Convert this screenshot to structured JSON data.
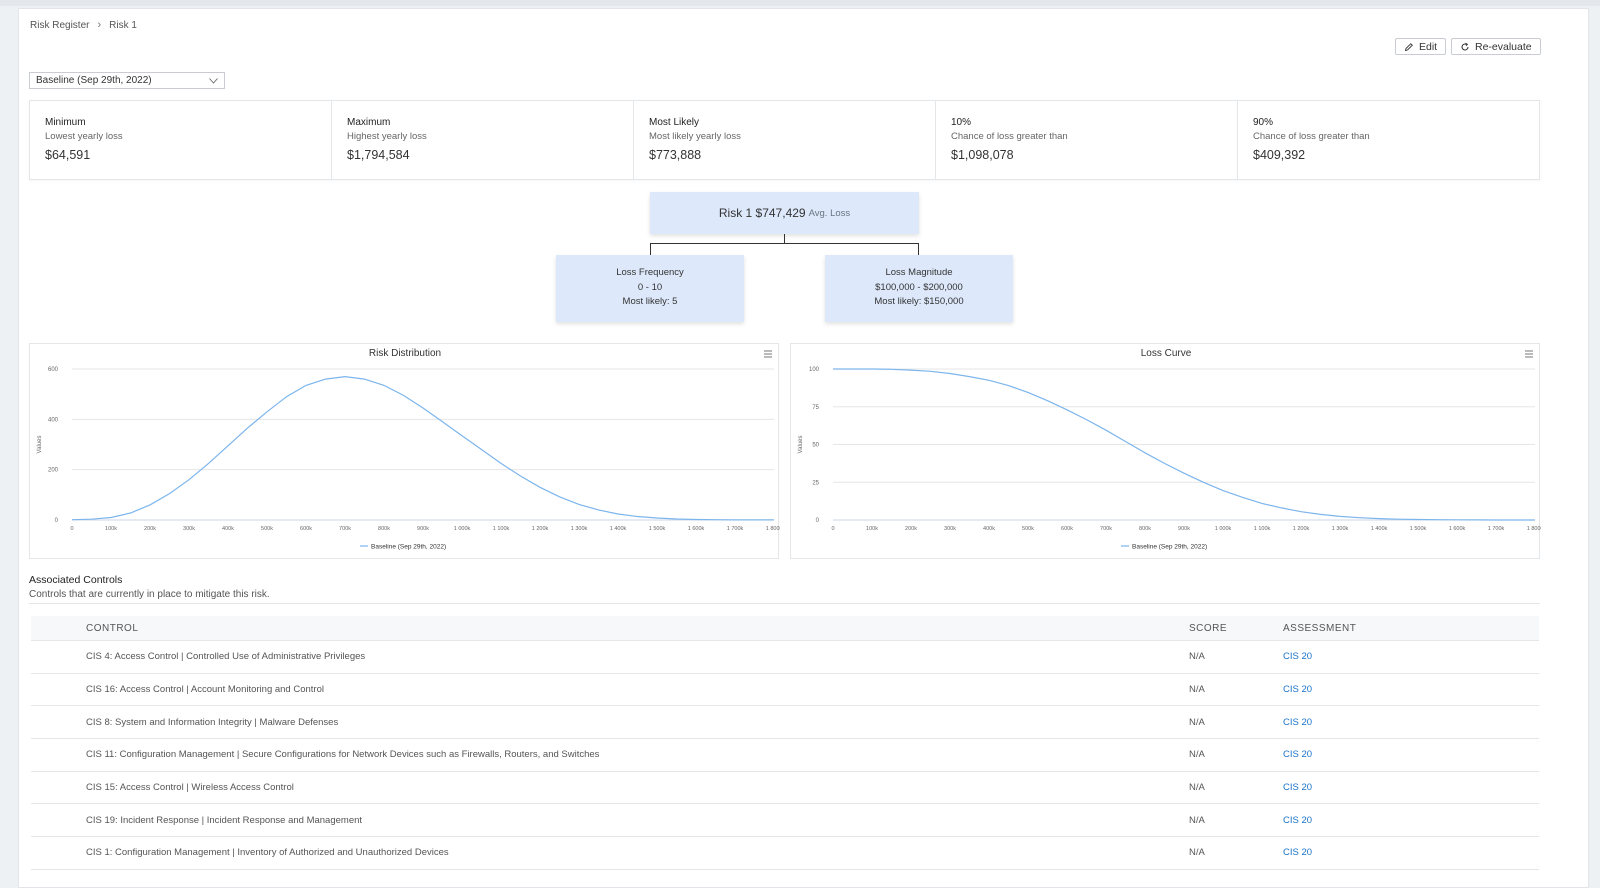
{
  "breadcrumb": {
    "parent": "Risk Register",
    "current": "Risk 1"
  },
  "actions": {
    "edit": "Edit",
    "reevaluate": "Re-evaluate"
  },
  "baseline_select": {
    "value": "Baseline (Sep 29th, 2022)"
  },
  "stats": [
    {
      "title": "Minimum",
      "subtitle": "Lowest yearly loss",
      "value": "$64,591"
    },
    {
      "title": "Maximum",
      "subtitle": "Highest yearly loss",
      "value": "$1,794,584"
    },
    {
      "title": "Most Likely",
      "subtitle": "Most likely yearly loss",
      "value": "$773,888"
    },
    {
      "title": "10%",
      "subtitle": "Chance of loss greater than",
      "value": "$1,098,078"
    },
    {
      "title": "90%",
      "subtitle": "Chance of loss greater than",
      "value": "$409,392"
    }
  ],
  "tree": {
    "root": {
      "label": "Risk 1 $747,429",
      "suffix": "Avg. Loss"
    },
    "frequency": {
      "title": "Loss Frequency",
      "range": "0 - 10",
      "likely": "Most likely: 5"
    },
    "magnitude": {
      "title": "Loss Magnitude",
      "range": "$100,000 - $200,000",
      "likely": "Most likely: $150,000"
    }
  },
  "chart_data": [
    {
      "type": "line",
      "title": "Risk Distribution",
      "ylabel": "Values",
      "ylim": [
        0,
        600
      ],
      "yticks": [
        "0",
        "200",
        "400",
        "600"
      ],
      "xticks": [
        "0",
        "100k",
        "200k",
        "300k",
        "400k",
        "500k",
        "600k",
        "700k",
        "800k",
        "900k",
        "1 000k",
        "1 100k",
        "1 200k",
        "1 300k",
        "1 400k",
        "1 500k",
        "1 600k",
        "1 700k",
        "1 800k"
      ],
      "series": [
        {
          "name": "Baseline (Sep 29th, 2022)",
          "x": [
            0,
            50,
            100,
            150,
            200,
            250,
            300,
            350,
            400,
            450,
            500,
            550,
            600,
            650,
            700,
            750,
            800,
            850,
            900,
            950,
            1000,
            1050,
            1100,
            1150,
            1200,
            1250,
            1300,
            1350,
            1400,
            1450,
            1500,
            1550,
            1600,
            1650,
            1700,
            1750,
            1800
          ],
          "values": [
            1,
            3,
            10,
            28,
            60,
            105,
            160,
            225,
            295,
            365,
            430,
            490,
            535,
            560,
            570,
            560,
            535,
            495,
            445,
            390,
            335,
            280,
            225,
            175,
            130,
            92,
            62,
            40,
            24,
            14,
            8,
            4,
            2,
            1,
            0.5,
            0.3,
            0.2
          ]
        }
      ],
      "color": "#7cb5ec"
    },
    {
      "type": "line",
      "title": "Loss Curve",
      "ylabel": "Values",
      "ylim": [
        0,
        100
      ],
      "yticks": [
        "0",
        "25",
        "50",
        "75",
        "100"
      ],
      "xticks": [
        "0",
        "100k",
        "200k",
        "300k",
        "400k",
        "500k",
        "600k",
        "700k",
        "800k",
        "900k",
        "1 000k",
        "1 100k",
        "1 200k",
        "1 300k",
        "1 400k",
        "1 500k",
        "1 600k",
        "1 700k",
        "1 800k"
      ],
      "series": [
        {
          "name": "Baseline (Sep 29th, 2022)",
          "x": [
            0,
            50,
            100,
            150,
            200,
            250,
            300,
            350,
            400,
            450,
            500,
            550,
            600,
            650,
            700,
            750,
            800,
            850,
            900,
            950,
            1000,
            1050,
            1100,
            1150,
            1200,
            1250,
            1300,
            1350,
            1400,
            1450,
            1500,
            1550,
            1600,
            1650,
            1700,
            1750,
            1800
          ],
          "values": [
            100,
            100,
            100,
            99.8,
            99.3,
            98.5,
            97,
            95,
            92.5,
            89,
            84.5,
            79,
            73,
            66.5,
            59.5,
            52,
            44.5,
            37.5,
            31,
            25,
            19.5,
            15,
            11,
            8,
            5.5,
            3.7,
            2.4,
            1.5,
            0.9,
            0.5,
            0.3,
            0.2,
            0.1,
            0.05,
            0.02,
            0.01,
            0
          ]
        }
      ],
      "color": "#7cb5ec"
    }
  ],
  "controls_section": {
    "title": "Associated Controls",
    "subtitle": "Controls that are currently in place to mitigate this risk."
  },
  "table": {
    "headers": {
      "control": "CONTROL",
      "score": "SCORE",
      "assessment": "ASSESSMENT"
    },
    "rows": [
      {
        "control": "CIS 4: Access Control | Controlled Use of Administrative Privileges",
        "score": "N/A",
        "assessment": "CIS 20"
      },
      {
        "control": "CIS 16: Access Control | Account Monitoring and Control",
        "score": "N/A",
        "assessment": "CIS 20"
      },
      {
        "control": "CIS 8: System and Information Integrity | Malware Defenses",
        "score": "N/A",
        "assessment": "CIS 20"
      },
      {
        "control": "CIS 11: Configuration Management | Secure Configurations for Network Devices such as Firewalls, Routers, and Switches",
        "score": "N/A",
        "assessment": "CIS 20"
      },
      {
        "control": "CIS 15: Access Control | Wireless Access Control",
        "score": "N/A",
        "assessment": "CIS 20"
      },
      {
        "control": "CIS 19: Incident Response | Incident Response and Management",
        "score": "N/A",
        "assessment": "CIS 20"
      },
      {
        "control": "CIS 1: Configuration Management | Inventory of Authorized and Unauthorized Devices",
        "score": "N/A",
        "assessment": "CIS 20"
      }
    ]
  }
}
